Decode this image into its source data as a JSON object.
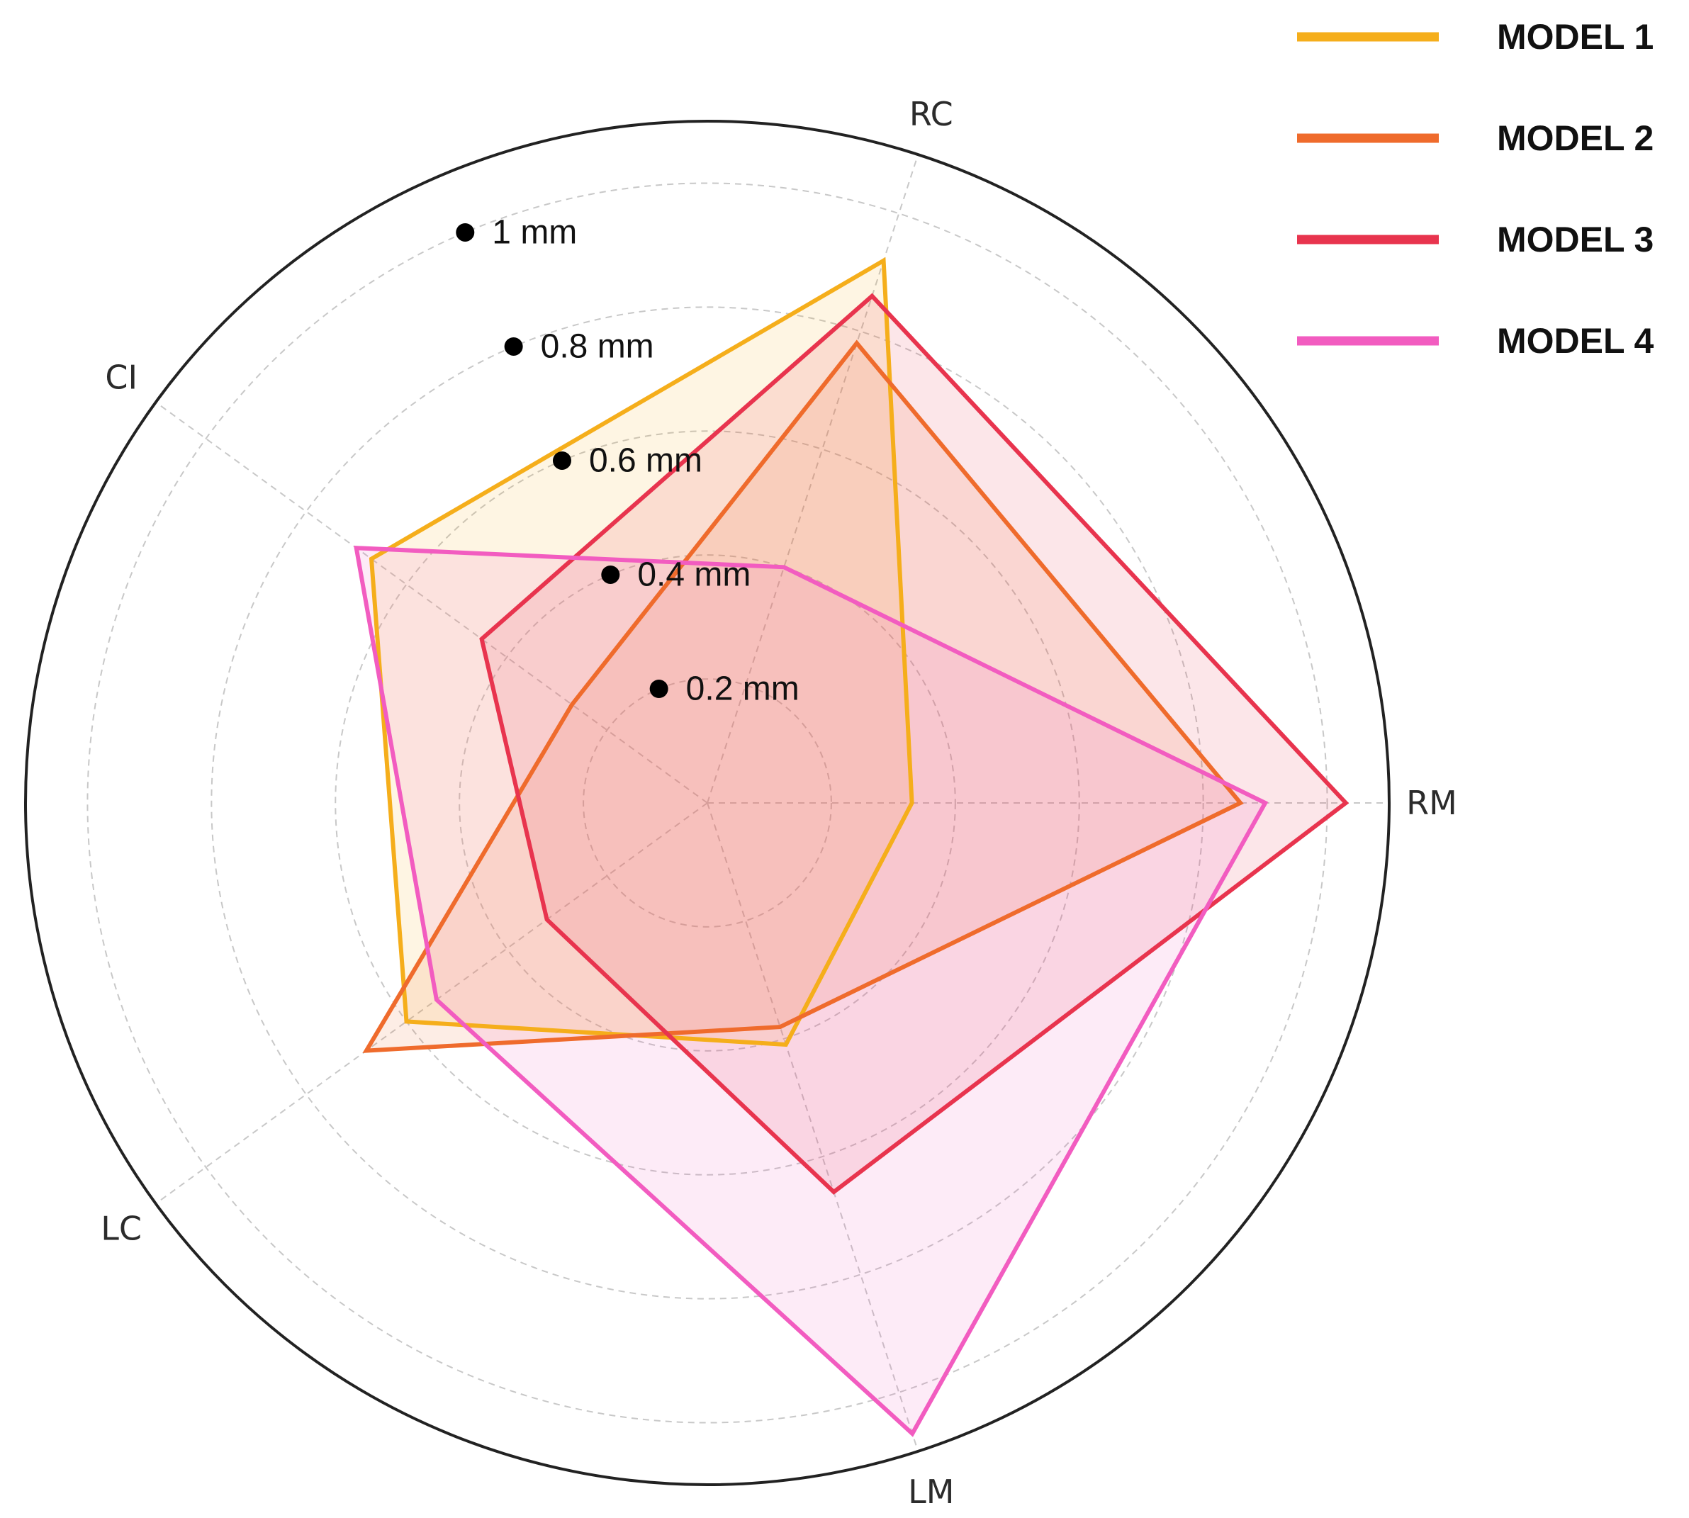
{
  "chart_data": {
    "type": "radar",
    "axes": [
      "RM",
      "RC",
      "CI",
      "LC",
      "LM"
    ],
    "rlim": [
      0,
      1.1
    ],
    "ring_ticks": [
      {
        "value": 0.2,
        "label": "0.2 mm"
      },
      {
        "value": 0.4,
        "label": "0.4 mm"
      },
      {
        "value": 0.6,
        "label": "0.6 mm"
      },
      {
        "value": 0.8,
        "label": "0.8 mm"
      },
      {
        "value": 1.0,
        "label": "1 mm"
      }
    ],
    "grid": true,
    "legend_position": "top-right",
    "series": [
      {
        "name": "MODEL 1",
        "color": "#F5AE1B",
        "values": [
          0.33,
          0.92,
          0.67,
          0.6,
          0.41
        ]
      },
      {
        "name": "MODEL 2",
        "color": "#EF6B2C",
        "values": [
          0.86,
          0.78,
          0.27,
          0.68,
          0.38
        ]
      },
      {
        "name": "MODEL 3",
        "color": "#E8344E",
        "values": [
          1.03,
          0.86,
          0.45,
          0.32,
          0.66
        ]
      },
      {
        "name": "MODEL 4",
        "color": "#F25CC0",
        "values": [
          0.9,
          0.4,
          0.7,
          0.54,
          1.07
        ]
      }
    ]
  }
}
